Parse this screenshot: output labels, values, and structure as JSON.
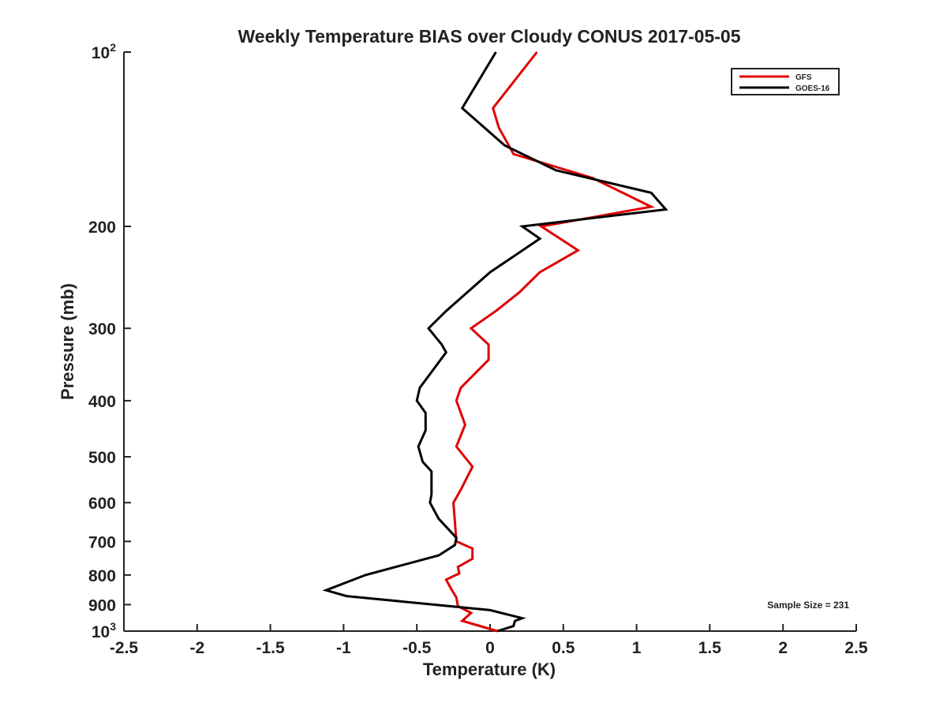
{
  "chart_data": {
    "type": "line",
    "title": "Weekly Temperature BIAS over Cloudy CONUS 2017-05-05",
    "xlabel": "Temperature (K)",
    "ylabel": "Pressure (mb)",
    "xlim": [
      -2.5,
      2.5
    ],
    "ylim": [
      1000,
      100
    ],
    "y_scale": "log",
    "y_reversed": true,
    "grid": false,
    "x_ticks": [
      -2.5,
      -2,
      -1.5,
      -1,
      -0.5,
      0,
      0.5,
      1,
      1.5,
      2,
      2.5
    ],
    "x_tick_labels": [
      "-2.5",
      "-2",
      "-1.5",
      "-1",
      "-0.5",
      "0",
      "0.5",
      "1",
      "1.5",
      "2",
      "2.5"
    ],
    "y_ticks": [
      100,
      200,
      300,
      400,
      500,
      600,
      700,
      800,
      900,
      1000
    ],
    "y_tick_labels": [
      {
        "base": "10",
        "exp": "2"
      },
      {
        "text": "200"
      },
      {
        "text": "300"
      },
      {
        "text": "400"
      },
      {
        "text": "500"
      },
      {
        "text": "600"
      },
      {
        "text": "700"
      },
      {
        "text": "800"
      },
      {
        "text": "900"
      },
      {
        "base": "10",
        "exp": "3"
      }
    ],
    "legend_position": "top-right",
    "annotation": "Sample Size = 231",
    "series": [
      {
        "name": "GFS",
        "color": "#e00000",
        "points": [
          [
            0.32,
            100
          ],
          [
            0.02,
            125
          ],
          [
            0.06,
            135
          ],
          [
            0.16,
            150
          ],
          [
            0.7,
            165
          ],
          [
            1.1,
            185
          ],
          [
            0.35,
            200
          ],
          [
            0.6,
            220
          ],
          [
            0.34,
            240
          ],
          [
            0.2,
            260
          ],
          [
            0.04,
            280
          ],
          [
            -0.13,
            300
          ],
          [
            -0.01,
            320
          ],
          [
            -0.01,
            340
          ],
          [
            -0.2,
            380
          ],
          [
            -0.23,
            400
          ],
          [
            -0.17,
            440
          ],
          [
            -0.23,
            480
          ],
          [
            -0.12,
            520
          ],
          [
            -0.2,
            570
          ],
          [
            -0.25,
            600
          ],
          [
            -0.24,
            650
          ],
          [
            -0.23,
            700
          ],
          [
            -0.12,
            720
          ],
          [
            -0.12,
            750
          ],
          [
            -0.22,
            775
          ],
          [
            -0.21,
            795
          ],
          [
            -0.3,
            815
          ],
          [
            -0.26,
            850
          ],
          [
            -0.23,
            875
          ],
          [
            -0.22,
            905
          ],
          [
            -0.13,
            930
          ],
          [
            -0.17,
            950
          ],
          [
            -0.19,
            960
          ],
          [
            0.05,
            1000
          ]
        ]
      },
      {
        "name": "GOES-16",
        "color": "#000000",
        "points": [
          [
            0.04,
            100
          ],
          [
            -0.19,
            125
          ],
          [
            0.1,
            145
          ],
          [
            0.45,
            160
          ],
          [
            1.1,
            175
          ],
          [
            1.2,
            187
          ],
          [
            0.22,
            200
          ],
          [
            0.34,
            210
          ],
          [
            0.0,
            240
          ],
          [
            -0.3,
            280
          ],
          [
            -0.42,
            300
          ],
          [
            -0.33,
            320
          ],
          [
            -0.3,
            330
          ],
          [
            -0.48,
            380
          ],
          [
            -0.5,
            400
          ],
          [
            -0.44,
            420
          ],
          [
            -0.44,
            450
          ],
          [
            -0.49,
            480
          ],
          [
            -0.46,
            510
          ],
          [
            -0.4,
            530
          ],
          [
            -0.4,
            580
          ],
          [
            -0.41,
            600
          ],
          [
            -0.35,
            640
          ],
          [
            -0.23,
            690
          ],
          [
            -0.24,
            710
          ],
          [
            -0.35,
            740
          ],
          [
            -0.85,
            800
          ],
          [
            -1.12,
            850
          ],
          [
            -0.98,
            870
          ],
          [
            0.0,
            920
          ],
          [
            0.22,
            950
          ],
          [
            0.17,
            960
          ],
          [
            0.16,
            980
          ],
          [
            0.05,
            1000
          ]
        ]
      }
    ]
  }
}
